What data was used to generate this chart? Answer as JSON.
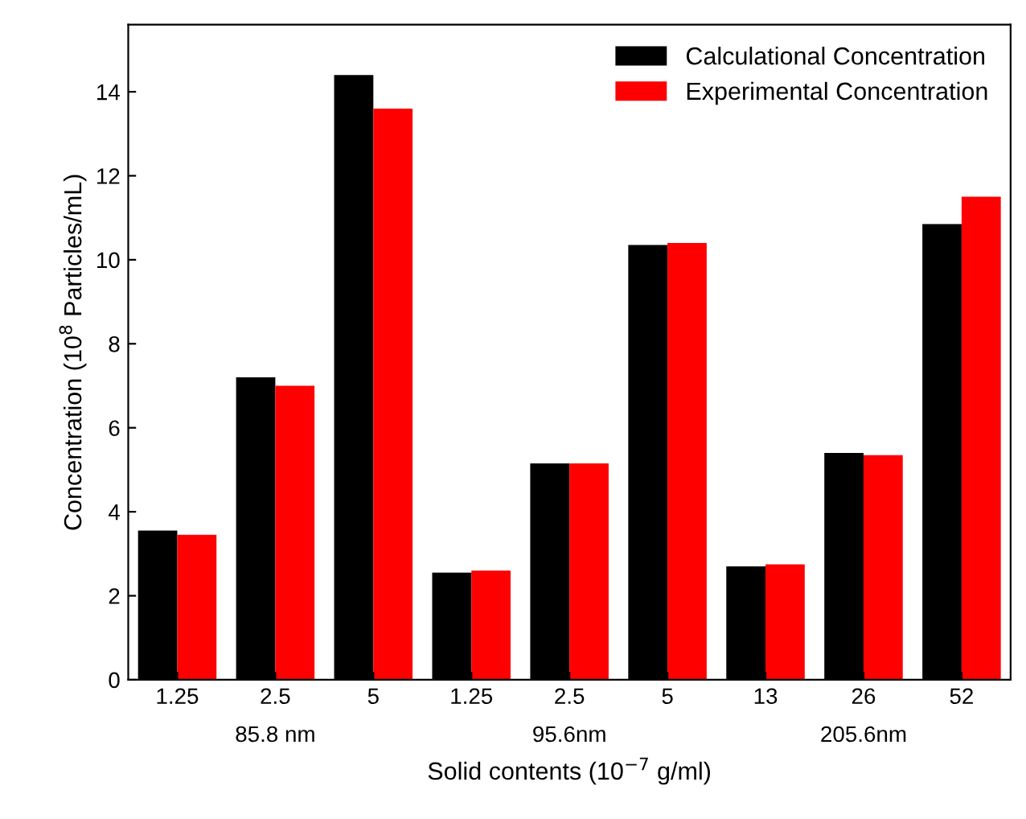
{
  "chart_data": {
    "type": "bar",
    "xlabel": "Solid contents (10$^{−7}$ g/ml)",
    "ylabel": "Concentration (10$^{8}$ Particles/mL)",
    "categories": [
      "1.25",
      "2.5",
      "5",
      "1.25",
      "2.5",
      "5",
      "13",
      "26",
      "52"
    ],
    "series": [
      {
        "name": "Calculational Concentration",
        "color": "#000000",
        "values": [
          3.55,
          7.2,
          14.4,
          2.55,
          5.15,
          10.35,
          2.7,
          5.4,
          10.85
        ]
      },
      {
        "name": "Experimental Concentration",
        "color": "#ff0000",
        "values": [
          3.45,
          7.0,
          13.6,
          2.6,
          5.15,
          10.4,
          2.75,
          5.35,
          11.5
        ]
      }
    ],
    "annotations": [
      "85.8 nm",
      "95.6nm",
      "205.6nm"
    ],
    "ylim": [
      0,
      15.6
    ],
    "yticks": [
      0,
      2,
      4,
      6,
      8,
      10,
      12,
      14
    ],
    "grid": false,
    "legend": "top right"
  }
}
